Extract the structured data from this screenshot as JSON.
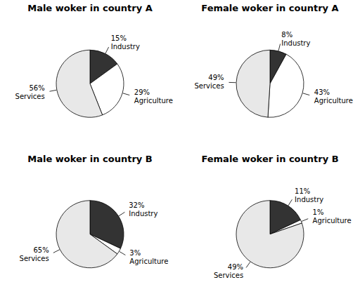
{
  "chart_data": [
    {
      "type": "pie",
      "title": "Male woker in country A",
      "categories": [
        "Industry",
        "Agriculture",
        "Services"
      ],
      "values": [
        15,
        29,
        56
      ],
      "value_labels": [
        "15%",
        "29%",
        "56%"
      ],
      "colors": [
        "#333333",
        "#ffffff",
        "#e8e8e8"
      ]
    },
    {
      "type": "pie",
      "title": "Female woker in country A",
      "categories": [
        "Industry",
        "Agriculture",
        "Services"
      ],
      "values": [
        8,
        43,
        49
      ],
      "value_labels": [
        "8%",
        "43%",
        "49%"
      ],
      "colors": [
        "#333333",
        "#ffffff",
        "#e8e8e8"
      ]
    },
    {
      "type": "pie",
      "title": "Male woker in country B",
      "categories": [
        "Industry",
        "Agriculture",
        "Services"
      ],
      "values": [
        32,
        3,
        65
      ],
      "value_labels": [
        "32%",
        "3%",
        "65%"
      ],
      "colors": [
        "#333333",
        "#ffffff",
        "#e8e8e8"
      ]
    },
    {
      "type": "pie",
      "title": "Female woker in country B",
      "categories": [
        "Industry",
        "Agriculture",
        "Services"
      ],
      "values": [
        11,
        1,
        49
      ],
      "value_labels": [
        "11%",
        "1%",
        "49%"
      ],
      "colors": [
        "#333333",
        "#ffffff",
        "#e8e8e8"
      ]
    }
  ]
}
